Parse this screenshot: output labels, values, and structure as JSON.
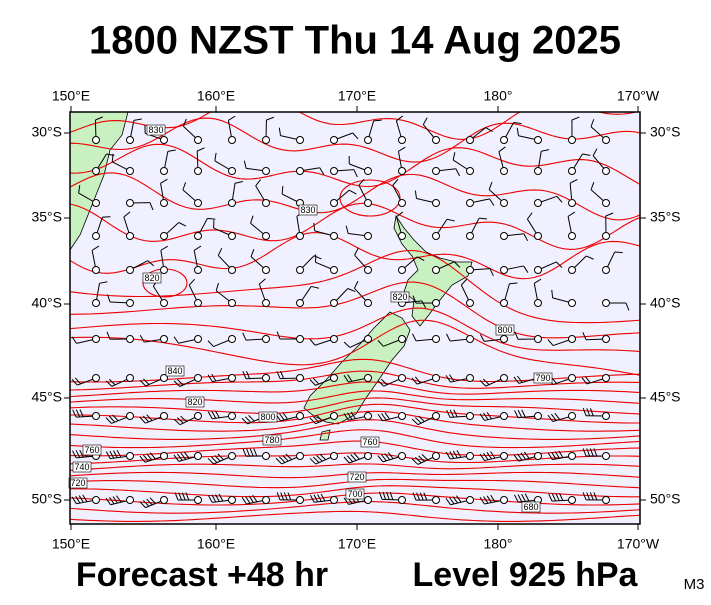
{
  "header": {
    "title": "1800 NZST Thu 14 Aug 2025"
  },
  "axes": {
    "top": [
      "150°E",
      "160°E",
      "170°E",
      "180°",
      "170°W"
    ],
    "bottom": [
      "150°E",
      "160°E",
      "170°E",
      "180°",
      "170°W"
    ],
    "left": [
      "30°S",
      "35°S",
      "40°S",
      "45°S",
      "50°S"
    ],
    "right": [
      "30°S",
      "35°S",
      "40°S",
      "45°S",
      "50°S"
    ]
  },
  "contour_labels": [
    "830",
    "830",
    "820",
    "820",
    "800",
    "790",
    "840",
    "820",
    "800",
    "780",
    "760",
    "760",
    "740",
    "720",
    "720",
    "700",
    "680"
  ],
  "footer": {
    "forecast": "Forecast +48 hr",
    "level": "Level 925 hPa",
    "code": "M3"
  }
}
